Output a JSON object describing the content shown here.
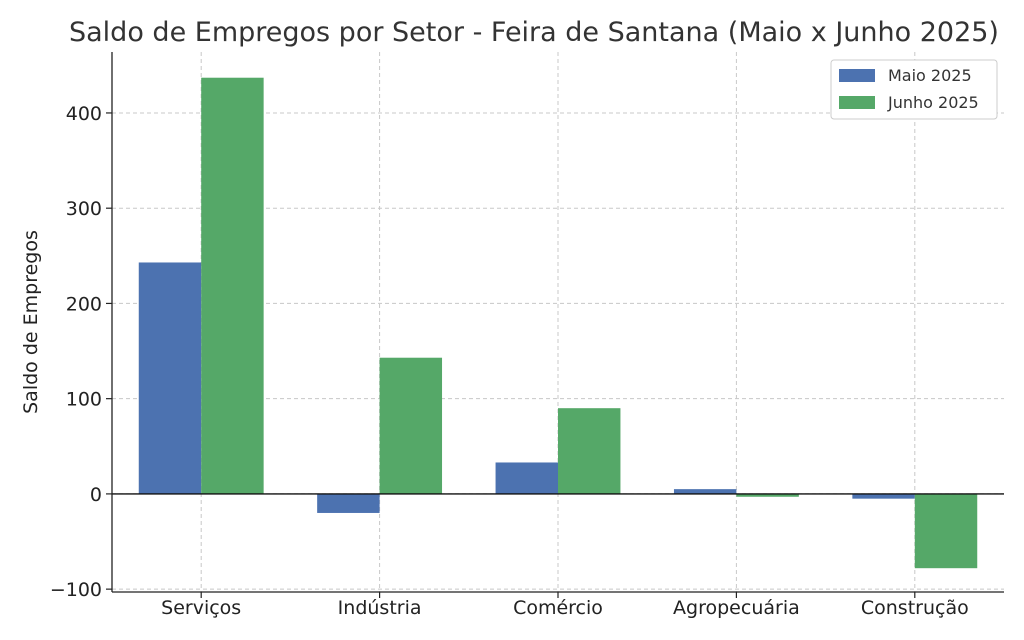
{
  "chart_data": {
    "type": "bar",
    "title": "Saldo de Empregos por Setor - Feira de Santana (Maio x Junho 2025)",
    "xlabel": "",
    "ylabel": "Saldo de Empregos",
    "categories": [
      "Serviços",
      "Indústria",
      "Comércio",
      "Agropecuária",
      "Construção"
    ],
    "series": [
      {
        "name": "Maio 2025",
        "values": [
          243,
          -20,
          33,
          5,
          -5
        ],
        "color": "#4c72b0"
      },
      {
        "name": "Junho 2025",
        "values": [
          437,
          143,
          90,
          -3,
          -78
        ],
        "color": "#55a868"
      }
    ],
    "ylim": [
      -103,
      464
    ],
    "yticks": [
      -100,
      0,
      100,
      200,
      300,
      400
    ],
    "ytick_labels": [
      "−100",
      "0",
      "100",
      "200",
      "300",
      "400"
    ],
    "grid": true,
    "legend_position": "top-right"
  }
}
